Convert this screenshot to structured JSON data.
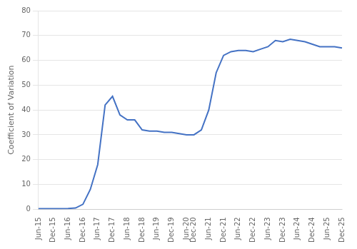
{
  "chart_data": {
    "type": "line",
    "ylabel": "Coefficient of Variation",
    "categories": [
      "Jun-15",
      null,
      "Dec-15",
      null,
      "Jun-16",
      null,
      "Dec-16",
      null,
      "Jun-17",
      null,
      "Dec-17",
      null,
      "Jun-18",
      null,
      "Dec-18",
      null,
      "Jun-19",
      null,
      "Dec-19",
      null,
      "Jun-20",
      "Dec-20",
      null,
      "Jun-21",
      null,
      "Dec-21",
      null,
      "Jun-22",
      null,
      "Dec-22",
      null,
      "Jun-23",
      null,
      "Dec-23",
      null,
      "Jun-24",
      null,
      "Dec-24",
      null,
      "Jun-25",
      null,
      "Dec-25"
    ],
    "values": [
      0.2,
      0.2,
      0.2,
      0.2,
      0.3,
      0.5,
      2.0,
      8.0,
      18.0,
      42.0,
      45.5,
      38.0,
      36.0,
      36.0,
      32.0,
      31.5,
      31.5,
      31.0,
      31.0,
      30.5,
      30.0,
      30.0,
      32.0,
      40.0,
      55.0,
      62.0,
      63.5,
      64.0,
      64.0,
      63.5,
      64.5,
      65.5,
      68.0,
      67.5,
      68.5,
      68.0,
      67.5,
      66.5,
      65.5,
      65.5,
      65.5,
      65.0
    ],
    "color": "#4472C4",
    "ylim": [
      0,
      80
    ],
    "yticks": [
      0,
      10,
      20,
      30,
      40,
      50,
      60,
      70,
      80
    ],
    "grid": "y"
  }
}
